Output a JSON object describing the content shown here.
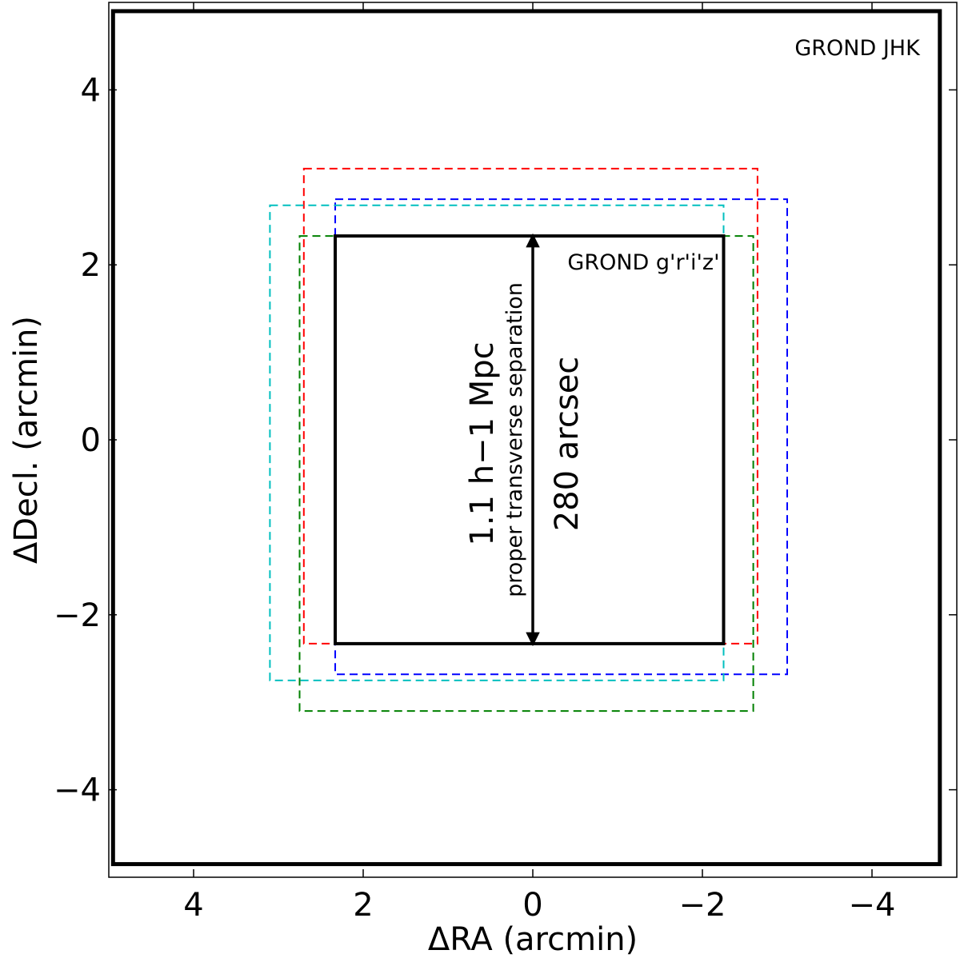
{
  "chart_data": {
    "type": "scatter",
    "description_units": "arcmin",
    "xlabel": "ΔRA (arcmin)",
    "ylabel": "ΔDecl. (arcmin)",
    "xlim": [
      5,
      -5
    ],
    "ylim": [
      -5,
      5
    ],
    "x_inverted": true,
    "xticks": [
      4,
      2,
      0,
      -2,
      -4
    ],
    "yticks": [
      -4,
      -2,
      0,
      2,
      4
    ],
    "xtick_labels": [
      "4",
      "2",
      "0",
      "−2",
      "−4"
    ],
    "ytick_labels": [
      "−4",
      "−2",
      "0",
      "2",
      "4"
    ],
    "grid": false,
    "fields": [
      {
        "name": "GROND JHK",
        "style": "solid-thick",
        "color": "#000000",
        "x_range": [
          4.95,
          -4.8
        ],
        "y_range": [
          -4.85,
          4.9
        ]
      },
      {
        "name": "GROND g'r'i'z'",
        "style": "solid",
        "color": "#000000",
        "x_range": [
          2.33,
          -2.25
        ],
        "y_range": [
          -2.33,
          2.33
        ]
      }
    ],
    "dithers": [
      {
        "color": "#ff0000",
        "style": "dashed",
        "x_range": [
          2.7,
          -2.65
        ],
        "y_range": [
          -2.33,
          3.1
        ]
      },
      {
        "color": "#0000ff",
        "style": "dashed",
        "x_range": [
          2.33,
          -3.0
        ],
        "y_range": [
          -2.68,
          2.75
        ]
      },
      {
        "color": "#00bfbf",
        "style": "dashed",
        "x_range": [
          3.1,
          -2.25
        ],
        "y_range": [
          -2.75,
          2.68
        ]
      },
      {
        "color": "#008000",
        "style": "dashed",
        "x_range": [
          2.75,
          -2.6
        ],
        "y_range": [
          -3.1,
          2.33
        ]
      }
    ],
    "scale_bar": {
      "x": 0,
      "y_range": [
        -2.28,
        2.28
      ],
      "label_top": "1.1 h−1 Mpc",
      "label_sub": "proper transverse separation",
      "label_right": "280 arcsec"
    }
  }
}
